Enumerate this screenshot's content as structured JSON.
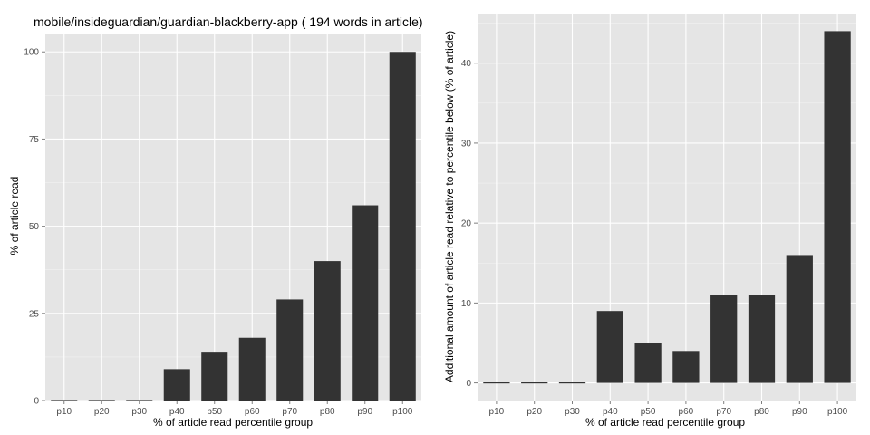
{
  "chart_data": [
    {
      "type": "bar",
      "title": "mobile/insideguardian/guardian-blackberry-app ( 194 words in article)",
      "xlabel": "% of article read percentile group",
      "ylabel": "% of article read",
      "categories": [
        "p10",
        "p20",
        "p30",
        "p40",
        "p50",
        "p60",
        "p70",
        "p80",
        "p90",
        "p100"
      ],
      "values": [
        0,
        0,
        0,
        9,
        14,
        18,
        29,
        40,
        56,
        100
      ],
      "ylim": [
        0,
        105
      ],
      "yticks": [
        0,
        25,
        50,
        75,
        100
      ],
      "grid": true,
      "colors": {
        "bar": "#333333",
        "panel": "#e5e5e5",
        "grid": "#ffffff"
      }
    },
    {
      "type": "bar",
      "title": "",
      "xlabel": "% of article read percentile group",
      "ylabel": "Additional amount of article read relative to percentile below (% of article)",
      "categories": [
        "p10",
        "p20",
        "p30",
        "p40",
        "p50",
        "p60",
        "p70",
        "p80",
        "p90",
        "p100"
      ],
      "values": [
        0,
        0,
        0,
        9,
        5,
        4,
        11,
        11,
        16,
        44
      ],
      "ylim": [
        -2.2,
        46.2
      ],
      "yticks": [
        0,
        10,
        20,
        30,
        40
      ],
      "grid": true,
      "colors": {
        "bar": "#333333",
        "panel": "#e5e5e5",
        "grid": "#ffffff"
      }
    }
  ]
}
